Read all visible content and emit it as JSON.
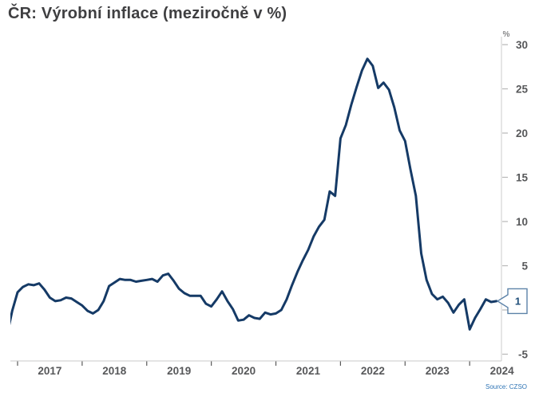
{
  "title": "ČR: Výrobní inflace (meziročně v %)",
  "unit_label": "%",
  "source_label": "Source: CZSO",
  "callout": {
    "label": "1"
  },
  "colors": {
    "line": "#153a66",
    "title_text": "#3f3f41",
    "axis_text": "#57585a",
    "axis_line": "#d4d4d4",
    "x_tick_mark": "#595959",
    "y_tick_mark": "#b8b8b8",
    "callout_border": "#5c82a8",
    "callout_text": "#1f4e79",
    "source_text": "#2e74b5",
    "background": "#ffffff"
  },
  "chart_data": {
    "type": "line",
    "title": "ČR: Výrobní inflace (meziročně v %)",
    "ylabel": "%",
    "xlabel": "",
    "grid": false,
    "legend_position": "none",
    "x_tick_years": [
      "2017",
      "2018",
      "2019",
      "2020",
      "2021",
      "2022",
      "2023",
      "2024"
    ],
    "y_ticks": [
      30,
      25,
      20,
      15,
      10,
      5,
      0,
      -5
    ],
    "ylim": [
      -5.8,
      30.9
    ],
    "latest_value_label": "1",
    "points": [
      [
        "2016-11",
        -3.0
      ],
      [
        "2016-12",
        -0.1
      ],
      [
        "2017-01",
        2.0
      ],
      [
        "2017-02",
        2.6
      ],
      [
        "2017-03",
        2.9
      ],
      [
        "2017-04",
        2.8
      ],
      [
        "2017-05",
        3.0
      ],
      [
        "2017-06",
        2.3
      ],
      [
        "2017-07",
        1.4
      ],
      [
        "2017-08",
        1.0
      ],
      [
        "2017-09",
        1.1
      ],
      [
        "2017-10",
        1.4
      ],
      [
        "2017-11",
        1.3
      ],
      [
        "2017-12",
        0.9
      ],
      [
        "2018-01",
        0.5
      ],
      [
        "2018-02",
        -0.1
      ],
      [
        "2018-03",
        -0.4
      ],
      [
        "2018-04",
        0.0
      ],
      [
        "2018-05",
        1.0
      ],
      [
        "2018-06",
        2.7
      ],
      [
        "2018-07",
        3.1
      ],
      [
        "2018-08",
        3.5
      ],
      [
        "2018-09",
        3.4
      ],
      [
        "2018-10",
        3.4
      ],
      [
        "2018-11",
        3.2
      ],
      [
        "2018-12",
        3.3
      ],
      [
        "2019-01",
        3.4
      ],
      [
        "2019-02",
        3.5
      ],
      [
        "2019-03",
        3.2
      ],
      [
        "2019-04",
        3.9
      ],
      [
        "2019-05",
        4.1
      ],
      [
        "2019-06",
        3.3
      ],
      [
        "2019-07",
        2.4
      ],
      [
        "2019-08",
        1.9
      ],
      [
        "2019-09",
        1.6
      ],
      [
        "2019-10",
        1.6
      ],
      [
        "2019-11",
        1.6
      ],
      [
        "2019-12",
        0.7
      ],
      [
        "2020-01",
        0.4
      ],
      [
        "2020-02",
        1.2
      ],
      [
        "2020-03",
        2.1
      ],
      [
        "2020-04",
        1.0
      ],
      [
        "2020-05",
        0.1
      ],
      [
        "2020-06",
        -1.2
      ],
      [
        "2020-07",
        -1.1
      ],
      [
        "2020-08",
        -0.6
      ],
      [
        "2020-09",
        -0.9
      ],
      [
        "2020-10",
        -1.0
      ],
      [
        "2020-11",
        -0.3
      ],
      [
        "2020-12",
        -0.5
      ],
      [
        "2021-01",
        -0.4
      ],
      [
        "2021-02",
        0.0
      ],
      [
        "2021-03",
        1.2
      ],
      [
        "2021-04",
        2.8
      ],
      [
        "2021-05",
        4.3
      ],
      [
        "2021-06",
        5.6
      ],
      [
        "2021-07",
        6.8
      ],
      [
        "2021-08",
        8.3
      ],
      [
        "2021-09",
        9.4
      ],
      [
        "2021-10",
        10.2
      ],
      [
        "2021-11",
        13.4
      ],
      [
        "2021-12",
        12.9
      ],
      [
        "2022-01",
        19.4
      ],
      [
        "2022-02",
        20.9
      ],
      [
        "2022-03",
        23.2
      ],
      [
        "2022-04",
        25.2
      ],
      [
        "2022-05",
        27.1
      ],
      [
        "2022-06",
        28.4
      ],
      [
        "2022-07",
        27.6
      ],
      [
        "2022-08",
        25.1
      ],
      [
        "2022-09",
        25.7
      ],
      [
        "2022-10",
        24.9
      ],
      [
        "2022-11",
        22.9
      ],
      [
        "2022-12",
        20.3
      ],
      [
        "2023-01",
        19.1
      ],
      [
        "2023-02",
        15.9
      ],
      [
        "2023-03",
        12.9
      ],
      [
        "2023-04",
        6.4
      ],
      [
        "2023-05",
        3.4
      ],
      [
        "2023-06",
        1.8
      ],
      [
        "2023-07",
        1.2
      ],
      [
        "2023-08",
        1.5
      ],
      [
        "2023-09",
        0.8
      ],
      [
        "2023-10",
        -0.3
      ],
      [
        "2023-11",
        0.6
      ],
      [
        "2023-12",
        1.2
      ],
      [
        "2024-01",
        -2.2
      ],
      [
        "2024-02",
        -0.9
      ],
      [
        "2024-03",
        0.1
      ],
      [
        "2024-04",
        1.2
      ],
      [
        "2024-05",
        0.9
      ],
      [
        "2024-06",
        1.0
      ]
    ]
  }
}
